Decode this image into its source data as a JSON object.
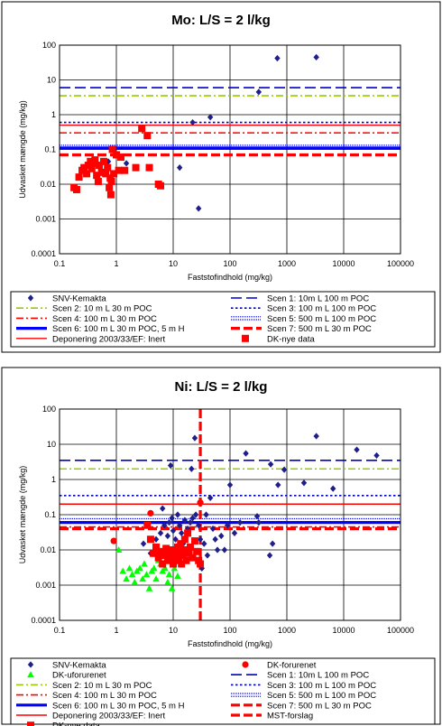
{
  "chart_data": [
    {
      "type": "scatter",
      "title": "Mo: L/S = 2 l/kg",
      "xlabel": "Faststofindhold (mg/kg)",
      "ylabel": "Udvasket mængde (mg/kg)",
      "xscale": "log",
      "yscale": "log",
      "xlim": [
        0.1,
        100000
      ],
      "ylim": [
        0.0001,
        100
      ],
      "xticks": [
        "0.1",
        "1",
        "10",
        "100",
        "1000",
        "10000",
        "100000"
      ],
      "yticks": [
        "0.0001",
        "0.001",
        "0.01",
        "0.1",
        "1",
        "10",
        "100"
      ],
      "grid": "major",
      "legend_position": "bottom",
      "series": [
        {
          "name": "SNV-Kemakta",
          "marker": "diamond",
          "color": "#1f1f8c",
          "points": [
            [
              0.72,
              0.045
            ],
            [
              1.5,
              0.04
            ],
            [
              13,
              0.03
            ],
            [
              22,
              0.6
            ],
            [
              28,
              0.002
            ],
            [
              45,
              0.85
            ],
            [
              320,
              4.5
            ],
            [
              680,
              42
            ],
            [
              3300,
              45
            ]
          ]
        },
        {
          "name": "DK-nye data",
          "marker": "square",
          "color": "#ff0000",
          "points": [
            [
              0.18,
              0.008
            ],
            [
              0.2,
              0.007
            ],
            [
              0.22,
              0.016
            ],
            [
              0.25,
              0.025
            ],
            [
              0.27,
              0.03
            ],
            [
              0.3,
              0.02
            ],
            [
              0.32,
              0.035
            ],
            [
              0.35,
              0.045
            ],
            [
              0.37,
              0.028
            ],
            [
              0.4,
              0.04
            ],
            [
              0.42,
              0.05
            ],
            [
              0.45,
              0.018
            ],
            [
              0.48,
              0.012
            ],
            [
              0.5,
              0.035
            ],
            [
              0.55,
              0.022
            ],
            [
              0.6,
              0.045
            ],
            [
              0.65,
              0.02
            ],
            [
              0.7,
              0.03
            ],
            [
              0.75,
              0.008
            ],
            [
              0.78,
              0.015
            ],
            [
              0.8,
              0.005
            ],
            [
              0.82,
              0.012
            ],
            [
              0.85,
              0.1
            ],
            [
              0.9,
              0.02
            ],
            [
              1.0,
              0.07
            ],
            [
              1.1,
              0.025
            ],
            [
              1.2,
              0.06
            ],
            [
              1.4,
              0.025
            ],
            [
              2.2,
              0.03
            ],
            [
              2.8,
              0.4
            ],
            [
              3.5,
              0.25
            ],
            [
              3.8,
              0.03
            ],
            [
              5.5,
              0.01
            ],
            [
              6,
              0.009
            ]
          ]
        }
      ],
      "reference_lines": [
        {
          "name": "Scen 1: 10m L 100 m POC",
          "y": 6.0,
          "style": "long-dash",
          "color": "#0000cc"
        },
        {
          "name": "Scen 2: 10 m L 30 m POC",
          "y": 3.5,
          "style": "dash-dot",
          "color": "#99cc00"
        },
        {
          "name": "Scen 3: 100 m L 100 m POC",
          "y": 0.6,
          "style": "dot",
          "color": "#0000cc"
        },
        {
          "name": "Scen 4: 100 m L 30 m POC",
          "y": 0.3,
          "style": "dash-dot",
          "color": "#ff0000"
        },
        {
          "name": "Scen 5: 500 m L 100 m POC",
          "y": 0.12,
          "style": "double-dot",
          "color": "#0000cc"
        },
        {
          "name": "Scen 6: 100 m L 30 m POC, 5 m H",
          "y": 0.11,
          "style": "solid-thick",
          "color": "#0000ff"
        },
        {
          "name": "Scen 7: 500 m L 30 m POC",
          "y": 0.07,
          "style": "dash-thick",
          "color": "#ff0000"
        },
        {
          "name": "Deponering 2003/33/EF: Inert",
          "y": 0.5,
          "style": "solid",
          "color": "#ff0000"
        }
      ],
      "legend_entries": [
        "SNV-Kemakta",
        "Scen 1: 10m L 100 m POC",
        "Scen 2: 10 m L 30 m POC",
        "Scen 3: 100 m L 100 m POC",
        "Scen 4: 100 m L 30 m POC",
        "Scen 5: 500 m L 100 m POC",
        "Scen 6: 100 m L 30 m POC, 5 m H",
        "Scen 7: 500 m L 30 m POC",
        "Deponering 2003/33/EF: Inert",
        "DK-nye data"
      ]
    },
    {
      "type": "scatter",
      "title": "Ni: L/S = 2 l/kg",
      "xlabel": "Faststofindhold (mg/kg)",
      "ylabel": "Udvasket mængde (mg/kg)",
      "xscale": "log",
      "yscale": "log",
      "xlim": [
        0.1,
        100000
      ],
      "ylim": [
        0.0001,
        100
      ],
      "xticks": [
        "0.1",
        "1",
        "10",
        "100",
        "1000",
        "10000",
        "100000"
      ],
      "yticks": [
        "0.0001",
        "0.001",
        "0.01",
        "0.1",
        "1",
        "10",
        "100"
      ],
      "grid": "major",
      "legend_position": "bottom",
      "series": [
        {
          "name": "SNV-Kemakta",
          "marker": "diamond",
          "color": "#1f1f8c",
          "points": [
            [
              3,
              0.015
            ],
            [
              4,
              0.008
            ],
            [
              5,
              0.02
            ],
            [
              6,
              0.03
            ],
            [
              6.5,
              0.15
            ],
            [
              7,
              0.05
            ],
            [
              7.5,
              0.01
            ],
            [
              8,
              0.025
            ],
            [
              8.5,
              0.06
            ],
            [
              9,
              2.5
            ],
            [
              9.5,
              0.08
            ],
            [
              10,
              0.035
            ],
            [
              11,
              0.02
            ],
            [
              12,
              0.1
            ],
            [
              13,
              0.05
            ],
            [
              14,
              0.03
            ],
            [
              15,
              0.015
            ],
            [
              16,
              0.07
            ],
            [
              18,
              0.04
            ],
            [
              20,
              0.06
            ],
            [
              21,
              2.0
            ],
            [
              22,
              0.08
            ],
            [
              24,
              15
            ],
            [
              25,
              0.1
            ],
            [
              28,
              0.05
            ],
            [
              30,
              0.02
            ],
            [
              32,
              0.003
            ],
            [
              35,
              0.015
            ],
            [
              38,
              0.1
            ],
            [
              40,
              0.007
            ],
            [
              45,
              0.3
            ],
            [
              50,
              0.04
            ],
            [
              55,
              0.02
            ],
            [
              60,
              0.01
            ],
            [
              70,
              0.025
            ],
            [
              80,
              0.01
            ],
            [
              90,
              0.05
            ],
            [
              100,
              0.7
            ],
            [
              120,
              0.03
            ],
            [
              150,
              0.06
            ],
            [
              190,
              5.5
            ],
            [
              300,
              0.09
            ],
            [
              320,
              0.06
            ],
            [
              500,
              0.007
            ],
            [
              520,
              2.7
            ],
            [
              560,
              0.015
            ],
            [
              700,
              0.7
            ],
            [
              900,
              1.9
            ],
            [
              2000,
              0.8
            ],
            [
              3300,
              17
            ],
            [
              6500,
              0.55
            ],
            [
              17000,
              7
            ],
            [
              38000,
              4.8
            ]
          ]
        },
        {
          "name": "DK-forurenet",
          "marker": "circle",
          "color": "#ff0000",
          "points": [
            [
              0.9,
              0.018
            ],
            [
              4,
              0.11
            ],
            [
              30,
              0.22
            ]
          ]
        },
        {
          "name": "DK-uforurenet",
          "marker": "triangle",
          "color": "#00ff00",
          "points": [
            [
              1.1,
              0.01
            ],
            [
              1.3,
              0.0025
            ],
            [
              1.5,
              0.0015
            ],
            [
              1.7,
              0.003
            ],
            [
              1.9,
              0.002
            ],
            [
              2.1,
              0.0012
            ],
            [
              2.3,
              0.0025
            ],
            [
              2.6,
              0.003
            ],
            [
              2.9,
              0.0015
            ],
            [
              3.1,
              0.004
            ],
            [
              3.4,
              0.002
            ],
            [
              3.8,
              0.0008
            ],
            [
              4.2,
              0.0025
            ],
            [
              4.6,
              0.003
            ],
            [
              5,
              0.0015
            ],
            [
              5.5,
              0.005
            ],
            [
              6,
              0.004
            ],
            [
              6.5,
              0.0025
            ],
            [
              7.2,
              0.003
            ],
            [
              8,
              0.0012
            ],
            [
              8.5,
              0.002
            ],
            [
              9.5,
              0.0008
            ],
            [
              10.5,
              0.003
            ],
            [
              12,
              0.0018
            ]
          ]
        },
        {
          "name": "DK-nye data",
          "marker": "square",
          "color": "#ff0000",
          "points": [
            [
              3.5,
              0.05
            ],
            [
              4,
              0.02
            ],
            [
              4.5,
              0.008
            ],
            [
              5,
              0.012
            ],
            [
              5.5,
              0.006
            ],
            [
              6,
              0.009
            ],
            [
              6.5,
              0.004
            ],
            [
              7,
              0.007
            ],
            [
              7.5,
              0.011
            ],
            [
              8,
              0.005
            ],
            [
              8.5,
              0.008
            ],
            [
              9,
              0.006
            ],
            [
              9.5,
              0.01
            ],
            [
              10,
              0.004
            ],
            [
              10.5,
              0.007
            ],
            [
              11,
              0.009
            ],
            [
              11.5,
              0.005
            ],
            [
              12,
              0.012
            ],
            [
              12.5,
              0.006
            ],
            [
              13,
              0.008
            ],
            [
              13.5,
              0.015
            ],
            [
              14,
              0.004
            ],
            [
              14.5,
              0.007
            ],
            [
              15,
              0.01
            ],
            [
              16,
              0.02
            ],
            [
              17,
              0.005
            ],
            [
              18,
              0.03
            ],
            [
              19,
              0.008
            ],
            [
              20,
              0.012
            ],
            [
              22,
              0.006
            ],
            [
              24,
              0.018
            ],
            [
              26,
              0.009
            ],
            [
              28,
              0.005
            ],
            [
              30,
              0.004
            ]
          ]
        }
      ],
      "vertical_lines": [
        {
          "name": "MST-forslag",
          "x": 30,
          "style": "dash-thick",
          "color": "#ff0000"
        }
      ],
      "reference_lines": [
        {
          "name": "Scen 1: 10m L 100 m POC",
          "y": 3.5,
          "style": "long-dash",
          "color": "#0000cc"
        },
        {
          "name": "Scen 2: 10 m L 30 m POC",
          "y": 2.0,
          "style": "dash-dot",
          "color": "#99cc00"
        },
        {
          "name": "Scen 3: 100 m L 100 m POC",
          "y": 0.35,
          "style": "dot",
          "color": "#0000cc"
        },
        {
          "name": "Deponering 2003/33/EF: Inert",
          "y": 0.2,
          "style": "solid",
          "color": "#ff0000"
        },
        {
          "name": "Scen 5: 500 m L 100 m POC",
          "y": 0.07,
          "style": "double-dot",
          "color": "#0000cc"
        },
        {
          "name": "Scen 6: 100 m L 30 m POC, 5 m H",
          "y": 0.06,
          "style": "solid-thick",
          "color": "#0000ff"
        },
        {
          "name": "Scen 4: 100 m L 30 m POC",
          "y": 0.045,
          "style": "dash-dot",
          "color": "#ff0000"
        },
        {
          "name": "Scen 7: 500 m L 30 m POC",
          "y": 0.04,
          "style": "dash-thick",
          "color": "#ff0000"
        }
      ],
      "legend_entries": [
        "SNV-Kemakta",
        "DK-forurenet",
        "DK-uforurenet",
        "Scen 1: 10m L 100 m POC",
        "Scen 2: 10 m L 30 m POC",
        "Scen 3: 100 m L 100 m POC",
        "Scen 4: 100 m L 30 m POC",
        "Scen 5: 500 m L 100 m POC",
        "Scen 6: 100 m L 30 m POC, 5 m H",
        "Scen 7: 500 m L 30 m POC",
        "Deponering 2003/33/EF: Inert",
        "MST-forslag",
        "DK-nye data"
      ]
    }
  ]
}
